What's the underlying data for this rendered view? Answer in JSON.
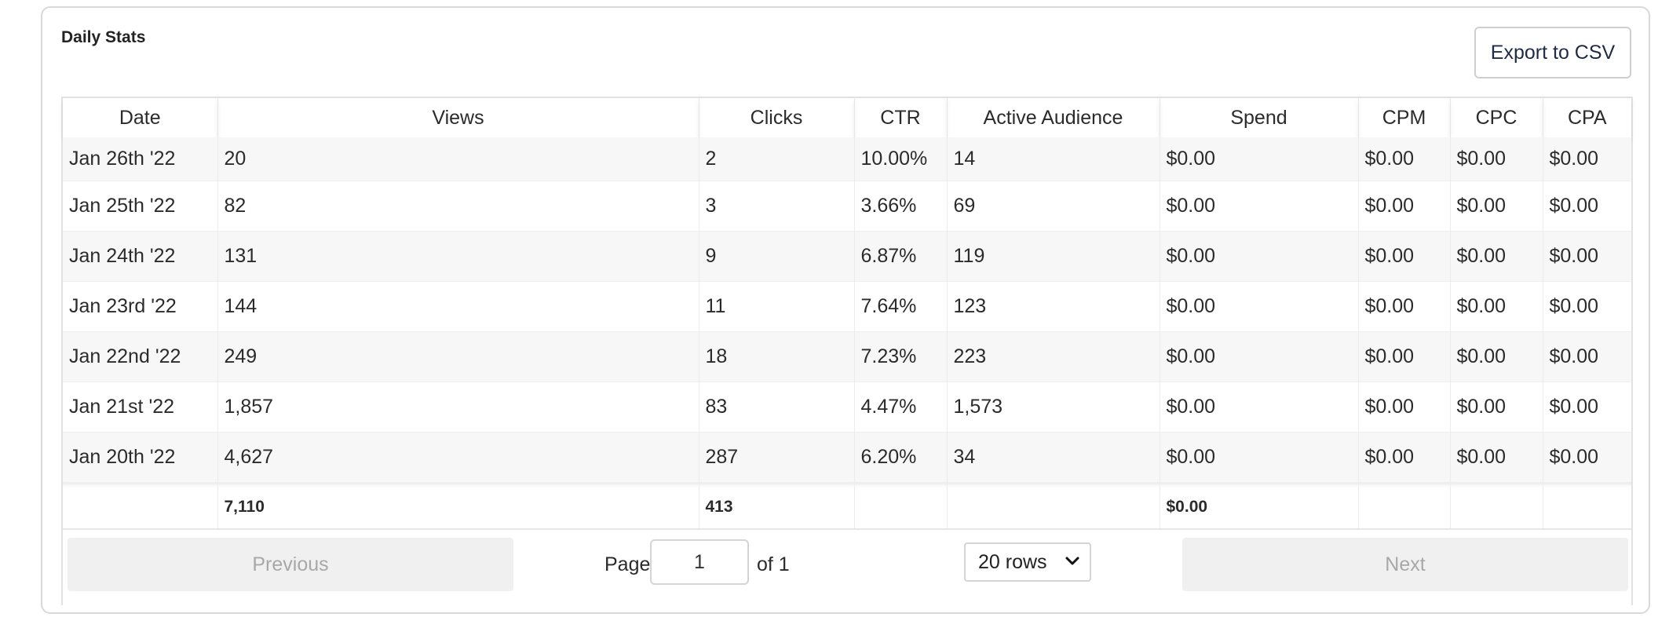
{
  "card": {
    "title": "Daily Stats",
    "export_label": "Export to CSV"
  },
  "table": {
    "headers": [
      "Date",
      "Views",
      "Clicks",
      "CTR",
      "Active Audience",
      "Spend",
      "CPM",
      "CPC",
      "CPA"
    ],
    "rows": [
      [
        "Jan 26th '22",
        "20",
        "2",
        "10.00%",
        "14",
        "$0.00",
        "$0.00",
        "$0.00",
        "$0.00"
      ],
      [
        "Jan 25th '22",
        "82",
        "3",
        "3.66%",
        "69",
        "$0.00",
        "$0.00",
        "$0.00",
        "$0.00"
      ],
      [
        "Jan 24th '22",
        "131",
        "9",
        "6.87%",
        "119",
        "$0.00",
        "$0.00",
        "$0.00",
        "$0.00"
      ],
      [
        "Jan 23rd '22",
        "144",
        "11",
        "7.64%",
        "123",
        "$0.00",
        "$0.00",
        "$0.00",
        "$0.00"
      ],
      [
        "Jan 22nd '22",
        "249",
        "18",
        "7.23%",
        "223",
        "$0.00",
        "$0.00",
        "$0.00",
        "$0.00"
      ],
      [
        "Jan 21st '22",
        "1,857",
        "83",
        "4.47%",
        "1,573",
        "$0.00",
        "$0.00",
        "$0.00",
        "$0.00"
      ],
      [
        "Jan 20th '22",
        "4,627",
        "287",
        "6.20%",
        "34",
        "$0.00",
        "$0.00",
        "$0.00",
        "$0.00"
      ]
    ],
    "totals": [
      "",
      "7,110",
      "413",
      "",
      "",
      "$0.00",
      "",
      "",
      ""
    ]
  },
  "pagination": {
    "previous_label": "Previous",
    "next_label": "Next",
    "page_label": "Page",
    "page_value": "1",
    "of_label": "of 1",
    "rows_selected": "20 rows",
    "chevron_icon": "chevron-down-icon"
  }
}
